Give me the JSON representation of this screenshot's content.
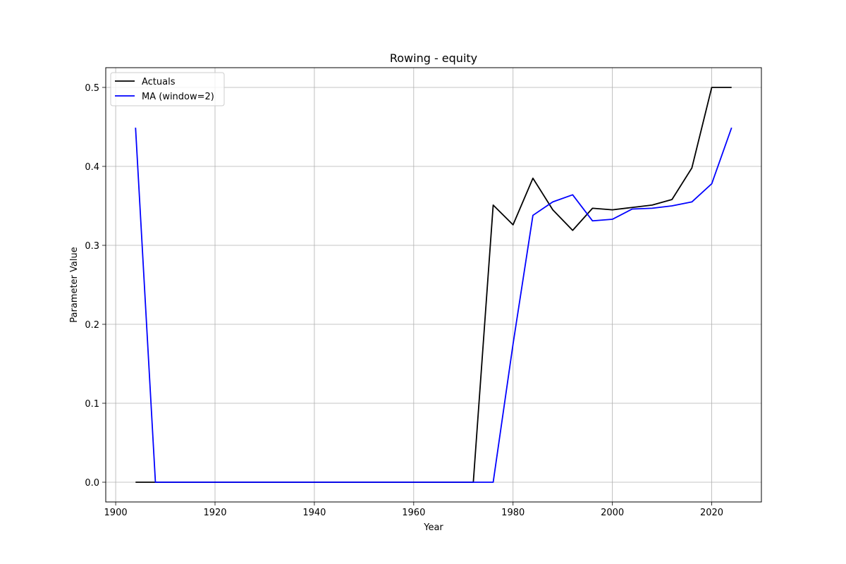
{
  "chart_data": {
    "type": "line",
    "title": "Rowing - equity",
    "xlabel": "Year",
    "ylabel": "Parameter Value",
    "xlim": [
      1898,
      2030
    ],
    "ylim": [
      -0.025,
      0.525
    ],
    "xticks": [
      1900,
      1920,
      1940,
      1960,
      1980,
      2000,
      2020
    ],
    "yticks": [
      0.0,
      0.1,
      0.2,
      0.3,
      0.4,
      0.5
    ],
    "ytick_labels": [
      "0.0",
      "0.1",
      "0.2",
      "0.3",
      "0.4",
      "0.5"
    ],
    "grid": true,
    "legend_position": "top-left",
    "x": [
      1904,
      1908,
      1912,
      1916,
      1920,
      1924,
      1928,
      1932,
      1936,
      1940,
      1944,
      1948,
      1952,
      1956,
      1960,
      1964,
      1968,
      1972,
      1976,
      1980,
      1984,
      1988,
      1992,
      1996,
      2000,
      2004,
      2008,
      2012,
      2016,
      2020,
      2024
    ],
    "series": [
      {
        "name": "Actuals",
        "color": "#000000",
        "values": [
          0,
          0,
          0,
          0,
          0,
          0,
          0,
          0,
          0,
          0,
          0,
          0,
          0,
          0,
          0,
          0,
          0,
          0,
          0.351,
          0.326,
          0.385,
          0.345,
          0.319,
          0.347,
          0.345,
          0.348,
          0.351,
          0.358,
          0.398,
          0.5,
          0.5
        ]
      },
      {
        "name": "MA (window=2)",
        "color": "#0000ff",
        "values": [
          0.449,
          0,
          0,
          0,
          0,
          0,
          0,
          0,
          0,
          0,
          0,
          0,
          0,
          0,
          0,
          0,
          0,
          0,
          0,
          0.175,
          0.338,
          0.355,
          0.364,
          0.331,
          0.333,
          0.346,
          0.347,
          0.35,
          0.355,
          0.378,
          0.449
        ]
      }
    ]
  }
}
